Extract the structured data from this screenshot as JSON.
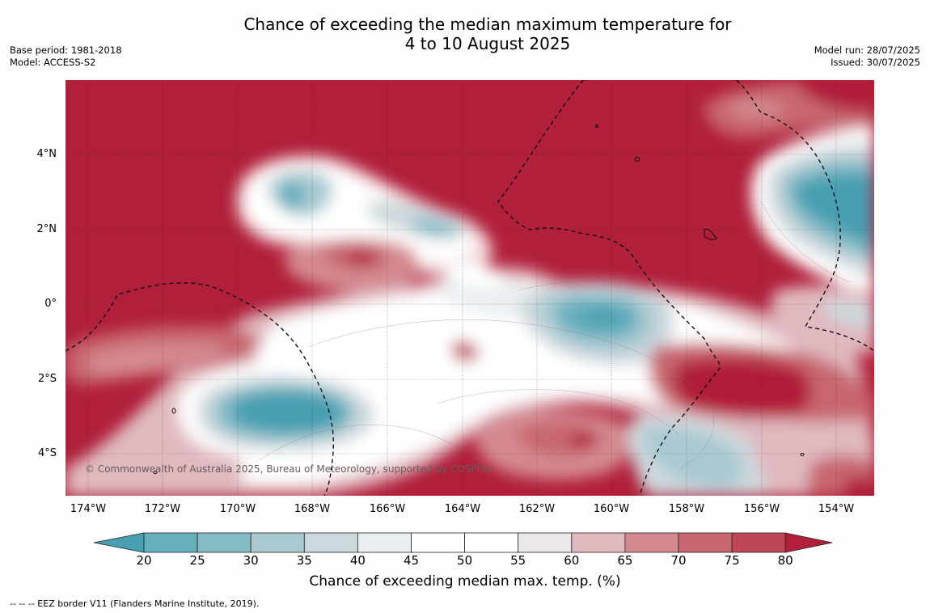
{
  "title_line1": "Chance of exceeding the median maximum temperature for",
  "title_line2": "4 to 10 August 2025",
  "base_period": "Base period: 1981-2018",
  "model": "Model: ACCESS-S2",
  "model_run": "Model run: 28/07/2025",
  "issued": "Issued: 30/07/2025",
  "copyright": "© Commonwealth of Australia 2025, Bureau of Meteorology, supported by COSPPac",
  "lat_labels": [
    "4°N",
    "2°N",
    "0°",
    "2°S",
    "4°S"
  ],
  "lon_labels": [
    "174°W",
    "172°W",
    "170°W",
    "168°W",
    "166°W",
    "164°W",
    "162°W",
    "160°W",
    "158°W",
    "156°W",
    "154°W"
  ],
  "colorbar": {
    "ticks": [
      "20",
      "25",
      "30",
      "35",
      "40",
      "45",
      "50",
      "55",
      "60",
      "65",
      "70",
      "75",
      "80"
    ],
    "colors": [
      "#479fb1",
      "#65aebd",
      "#86bcc8",
      "#a9c9d1",
      "#cdd8dd",
      "#eaeff1",
      "#ffffff",
      "#ffffff",
      "#ece8e9",
      "#e0b9bf",
      "#d4898f",
      "#c86670",
      "#bd4556",
      "#b11f3a"
    ],
    "label": "Chance of exceeding median max. temp. (%)"
  },
  "footer": "--  --  -- EEZ border V11 (Flanders Marine Institute, 2019)."
}
